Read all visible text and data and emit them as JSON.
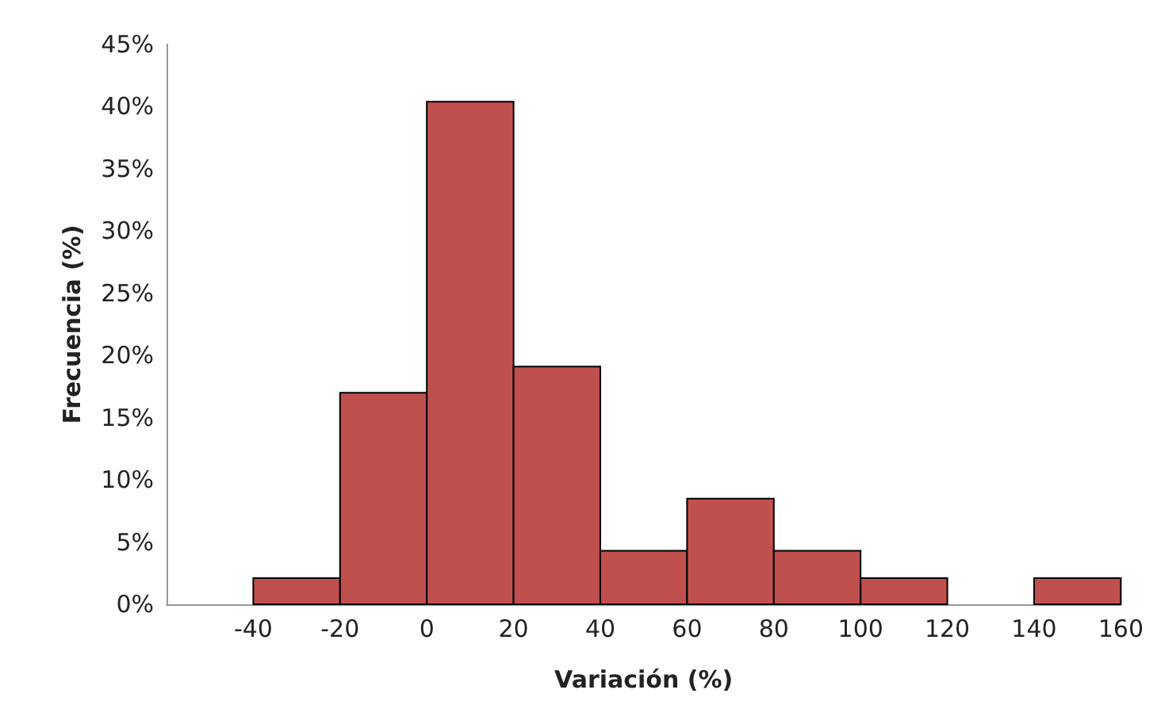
{
  "chart_data": {
    "type": "histogram",
    "xlabel": "Variación (%)",
    "ylabel": "Frecuencia (%)",
    "color": "#c0504d",
    "bins": [
      -40,
      -20,
      0,
      20,
      40,
      60,
      80,
      100,
      120,
      140,
      160
    ],
    "values": [
      2.1,
      17.0,
      40.4,
      19.1,
      4.3,
      8.5,
      4.3,
      2.1,
      0,
      2.1
    ],
    "xlim": [
      -60,
      160
    ],
    "xticks": [
      -40,
      -20,
      0,
      20,
      40,
      60,
      80,
      100,
      120,
      140,
      160
    ],
    "ylim": [
      0,
      45
    ],
    "yticks": [
      {
        "value": 0,
        "label": "0%"
      },
      {
        "value": 5,
        "label": "5%"
      },
      {
        "value": 10,
        "label": "10%"
      },
      {
        "value": 15,
        "label": "15%"
      },
      {
        "value": 20,
        "label": "20%"
      },
      {
        "value": 25,
        "label": "25%"
      },
      {
        "value": 30,
        "label": "30%"
      },
      {
        "value": 35,
        "label": "35%"
      },
      {
        "value": 40,
        "label": "40%"
      },
      {
        "value": 45,
        "label": "45%"
      }
    ],
    "grid": false
  }
}
